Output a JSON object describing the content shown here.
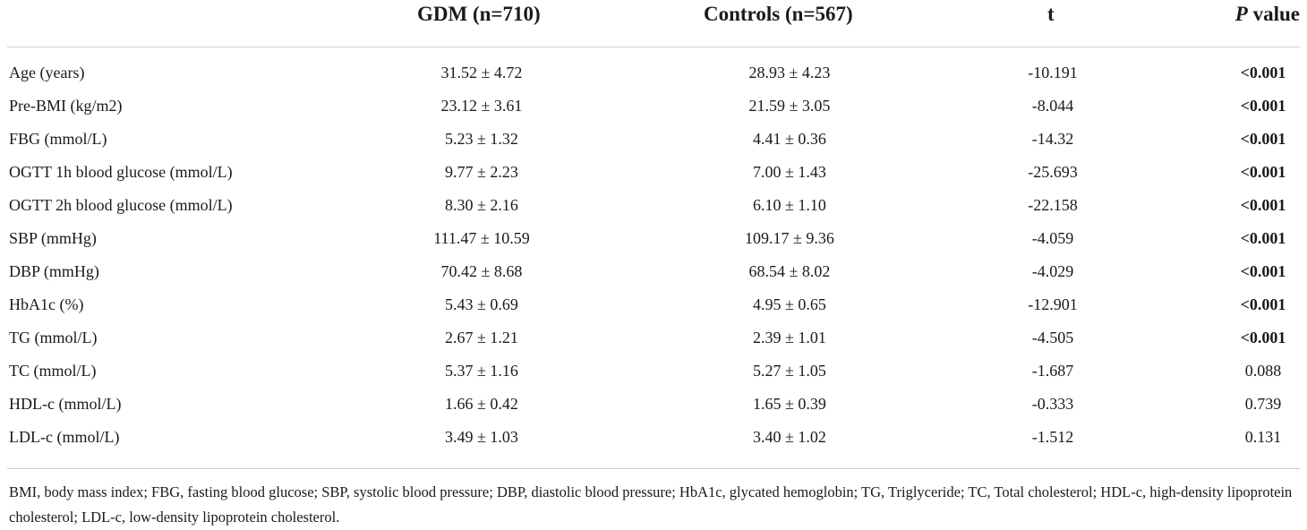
{
  "headers": {
    "gdm": "GDM (n=710)",
    "controls": "Controls (n=567)",
    "t": "t",
    "p_italic": "P",
    "p_rest": " value"
  },
  "rows": [
    {
      "label": "Age (years)",
      "gdm": "31.52 ± 4.72",
      "controls": "28.93 ± 4.23",
      "t": "-10.191",
      "p": "<0.001",
      "significant": true
    },
    {
      "label": "Pre-BMI (kg/m2)",
      "gdm": "23.12 ± 3.61",
      "controls": "21.59 ± 3.05",
      "t": "-8.044",
      "p": "<0.001",
      "significant": true
    },
    {
      "label": "FBG (mmol/L)",
      "gdm": "5.23 ± 1.32",
      "controls": "4.41 ± 0.36",
      "t": "-14.32",
      "p": "<0.001",
      "significant": true
    },
    {
      "label": "OGTT 1h blood glucose (mmol/L)",
      "gdm": "9.77 ± 2.23",
      "controls": "7.00 ± 1.43",
      "t": "-25.693",
      "p": "<0.001",
      "significant": true
    },
    {
      "label": "OGTT 2h blood glucose (mmol/L)",
      "gdm": "8.30 ± 2.16",
      "controls": "6.10 ± 1.10",
      "t": "-22.158",
      "p": "<0.001",
      "significant": true
    },
    {
      "label": "SBP (mmHg)",
      "gdm": "111.47 ± 10.59",
      "controls": "109.17 ± 9.36",
      "t": "-4.059",
      "p": "<0.001",
      "significant": true
    },
    {
      "label": "DBP (mmHg)",
      "gdm": "70.42 ± 8.68",
      "controls": "68.54 ± 8.02",
      "t": "-4.029",
      "p": "<0.001",
      "significant": true
    },
    {
      "label": "HbA1c (%)",
      "gdm": "5.43 ± 0.69",
      "controls": "4.95 ± 0.65",
      "t": "-12.901",
      "p": "<0.001",
      "significant": true
    },
    {
      "label": "TG (mmol/L)",
      "gdm": "2.67 ± 1.21",
      "controls": "2.39 ± 1.01",
      "t": "-4.505",
      "p": "<0.001",
      "significant": true
    },
    {
      "label": "TC (mmol/L)",
      "gdm": "5.37 ± 1.16",
      "controls": "5.27 ± 1.05",
      "t": "-1.687",
      "p": "0.088",
      "significant": false
    },
    {
      "label": "HDL-c (mmol/L)",
      "gdm": "1.66 ± 0.42",
      "controls": "1.65 ± 0.39",
      "t": "-0.333",
      "p": "0.739",
      "significant": false
    },
    {
      "label": "LDL-c (mmol/L)",
      "gdm": "3.49 ± 1.03",
      "controls": "3.40 ± 1.02",
      "t": "-1.512",
      "p": "0.131",
      "significant": false
    }
  ],
  "footnote": "BMI, body mass index; FBG, fasting blood glucose; SBP, systolic blood pressure; DBP, diastolic blood pressure; HbA1c, glycated hemoglobin; TG, Triglyceride; TC, Total cholesterol; HDL-c, high-density lipoprotein cholesterol; LDL-c, low-density lipoprotein cholesterol."
}
